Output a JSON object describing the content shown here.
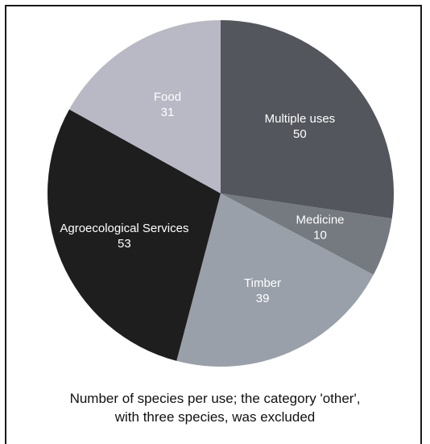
{
  "chart_data": {
    "type": "pie",
    "slices": [
      {
        "label": "Multiple uses",
        "value": 50,
        "color": "#54565d"
      },
      {
        "label": "Medicine",
        "value": 10,
        "color": "#757980"
      },
      {
        "label": "Timber",
        "value": 39,
        "color": "#99a0aa"
      },
      {
        "label": "Agroecological Services",
        "value": 53,
        "color": "#1e1e1e"
      },
      {
        "label": "Food",
        "value": 31,
        "color": "#b9b8c5"
      }
    ],
    "start_angle_deg": 0,
    "direction": "clockwise",
    "label_color": "#ffffff",
    "legend": "none"
  },
  "caption": {
    "line1": "Number of species per use; the category 'other',",
    "line2": "with three species, was excluded"
  }
}
